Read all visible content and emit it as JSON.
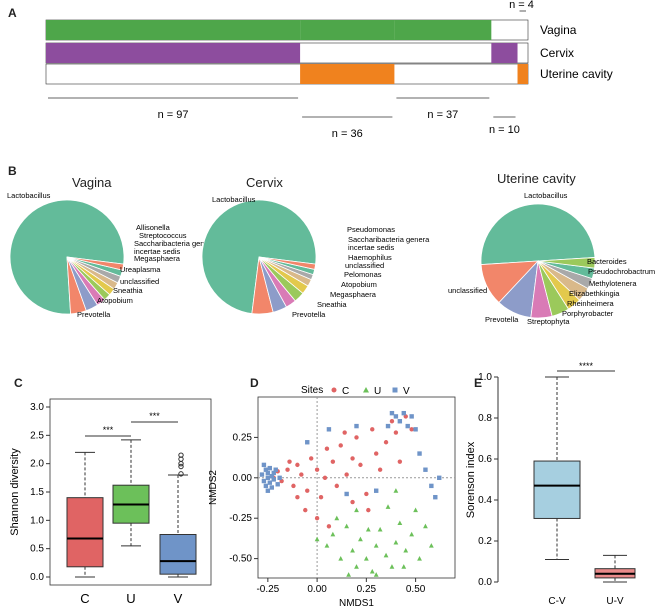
{
  "colors": {
    "vagina": "#4ea64a",
    "cervix": "#8d4d9e",
    "uterine": "#f0821e",
    "C": "#e06464",
    "U": "#6cc05a",
    "V": "#6f94c8",
    "E_CV": "#a6cfe0",
    "E_UV": "#e98a8a"
  },
  "panelA": {
    "letter": "A",
    "rows": [
      "Vagina",
      "Cervix",
      "Uterine cavity"
    ],
    "groups": [
      {
        "label": "n = 97",
        "pattern": [
          1,
          1,
          0
        ],
        "count": 97
      },
      {
        "label": "n = 36",
        "pattern": [
          1,
          0,
          1
        ],
        "count": 36
      },
      {
        "label": "n = 37",
        "pattern": [
          1,
          0,
          0
        ],
        "count": 37
      },
      {
        "label": "n = 10",
        "pattern": [
          0,
          1,
          0
        ],
        "count": 10
      },
      {
        "label": "n = 4",
        "pattern": [
          0,
          0,
          1
        ],
        "count": 4
      }
    ]
  },
  "panelB": {
    "letter": "B",
    "pies": [
      {
        "title": "Vagina",
        "slices": [
          {
            "name": "Lactobacillus",
            "value": 78,
            "color": "#63bb9a"
          },
          {
            "name": "Prevotella",
            "value": 4.5,
            "color": "#f2866a"
          },
          {
            "name": "Atopobium",
            "value": 3.5,
            "color": "#8d9cc9"
          },
          {
            "name": "Sneathia",
            "value": 2.5,
            "color": "#d97bb6"
          },
          {
            "name": "unclassified",
            "value": 2,
            "color": "#9bc95b"
          },
          {
            "name": "Ureaplasma",
            "value": 2,
            "color": "#e3c94c"
          },
          {
            "name": "Megasphaera",
            "value": 2,
            "color": "#d9b98a"
          },
          {
            "name": "Saccharibacteria genera incertae sedis",
            "value": 2,
            "color": "#a9a9a9"
          },
          {
            "name": "Streptococcus",
            "value": 1.8,
            "color": "#63bb9a"
          },
          {
            "name": "Allisonella",
            "value": 1.7,
            "color": "#f2866a"
          }
        ]
      },
      {
        "title": "Cervix",
        "slices": [
          {
            "name": "Lactobacillus",
            "value": 75,
            "color": "#63bb9a"
          },
          {
            "name": "Prevotella",
            "value": 6,
            "color": "#f2866a"
          },
          {
            "name": "Sneathia",
            "value": 4,
            "color": "#8d9cc9"
          },
          {
            "name": "Megasphaera",
            "value": 3,
            "color": "#d97bb6"
          },
          {
            "name": "Atopobium",
            "value": 3,
            "color": "#9bc95b"
          },
          {
            "name": "Pelomonas",
            "value": 2.5,
            "color": "#e3c94c"
          },
          {
            "name": "unclassified",
            "value": 2,
            "color": "#d9b98a"
          },
          {
            "name": "Haemophilus",
            "value": 1.5,
            "color": "#a9a9a9"
          },
          {
            "name": "Saccharibacteria genera incertae sedis",
            "value": 1.5,
            "color": "#63bb9a"
          },
          {
            "name": "Pseudomonas",
            "value": 1.5,
            "color": "#f2866a"
          }
        ]
      },
      {
        "title": "Uterine cavity",
        "slices": [
          {
            "name": "Lactobacillus",
            "value": 50,
            "color": "#63bb9a"
          },
          {
            "name": "unclassified",
            "value": 12,
            "color": "#f2866a"
          },
          {
            "name": "Prevotella",
            "value": 10,
            "color": "#8d9cc9"
          },
          {
            "name": "Streptophyta",
            "value": 6,
            "color": "#d97bb6"
          },
          {
            "name": "Porphyrobacter",
            "value": 5,
            "color": "#9bc95b"
          },
          {
            "name": "Rheinheimera",
            "value": 4,
            "color": "#e3c94c"
          },
          {
            "name": "Elizabethkingia",
            "value": 4,
            "color": "#d9b98a"
          },
          {
            "name": "Methylotenera",
            "value": 3,
            "color": "#a9a9a9"
          },
          {
            "name": "Pseudochrobactrum",
            "value": 3,
            "color": "#63bb9a"
          },
          {
            "name": "Bacteroides",
            "value": 3,
            "color": "#9bc95b"
          }
        ]
      }
    ]
  },
  "chart_data": [
    {
      "type": "box",
      "panel": "C",
      "ylabel": "Shannon diversity",
      "ylim": [
        0,
        3.0
      ],
      "yticks": [
        "0.0",
        "0.5",
        "1.0",
        "1.5",
        "2.0",
        "2.5",
        "3.0"
      ],
      "categories": [
        "C",
        "U",
        "V"
      ],
      "boxes": [
        {
          "name": "C",
          "min": 0.0,
          "q1": 0.18,
          "median": 0.68,
          "q3": 1.4,
          "max": 2.2,
          "outliers": []
        },
        {
          "name": "U",
          "min": 0.55,
          "q1": 0.95,
          "median": 1.28,
          "q3": 1.62,
          "max": 2.42,
          "outliers": []
        },
        {
          "name": "V",
          "min": 0.0,
          "q1": 0.05,
          "median": 0.28,
          "q3": 0.75,
          "max": 1.8,
          "outliers": [
            1.82,
            1.95,
            2.0,
            2.08,
            2.15
          ]
        }
      ],
      "sig": [
        {
          "pair": [
            "C",
            "U"
          ],
          "label": "***"
        },
        {
          "pair": [
            "U",
            "V"
          ],
          "label": "***"
        }
      ]
    },
    {
      "type": "scatter",
      "panel": "D",
      "xlabel": "NMDS1",
      "ylabel": "NMDS2",
      "legend_title": "Sites",
      "xlim": [
        -0.3,
        0.7
      ],
      "ylim": [
        -0.62,
        0.5
      ],
      "xticks": [
        "-0.25",
        "0.00",
        "0.25",
        "0.50"
      ],
      "yticks": [
        "-0.50",
        "-0.25",
        "0.00",
        "0.25"
      ],
      "series": [
        {
          "name": "C",
          "marker": "circle",
          "points": [
            [
              -0.22,
              0.0
            ],
            [
              -0.2,
              0.04
            ],
            [
              -0.18,
              -0.02
            ],
            [
              -0.15,
              0.05
            ],
            [
              -0.12,
              -0.05
            ],
            [
              -0.1,
              0.08
            ],
            [
              -0.08,
              0.02
            ],
            [
              -0.05,
              -0.08
            ],
            [
              -0.03,
              0.12
            ],
            [
              0.0,
              0.05
            ],
            [
              0.02,
              -0.12
            ],
            [
              0.05,
              0.18
            ],
            [
              0.08,
              0.1
            ],
            [
              0.1,
              -0.05
            ],
            [
              0.12,
              0.2
            ],
            [
              0.15,
              0.02
            ],
            [
              0.18,
              -0.15
            ],
            [
              0.2,
              0.25
            ],
            [
              0.22,
              0.08
            ],
            [
              0.25,
              -0.1
            ],
            [
              0.28,
              0.3
            ],
            [
              0.3,
              0.15
            ],
            [
              0.32,
              0.05
            ],
            [
              0.35,
              0.22
            ],
            [
              0.38,
              0.35
            ],
            [
              0.4,
              0.28
            ],
            [
              0.42,
              0.1
            ],
            [
              0.45,
              0.38
            ],
            [
              0.48,
              0.3
            ],
            [
              -0.06,
              -0.2
            ],
            [
              0.0,
              -0.25
            ],
            [
              0.06,
              -0.3
            ],
            [
              -0.1,
              -0.12
            ],
            [
              0.14,
              0.28
            ],
            [
              0.26,
              -0.2
            ],
            [
              -0.14,
              0.1
            ],
            [
              0.04,
              0.0
            ],
            [
              0.18,
              0.12
            ]
          ]
        },
        {
          "name": "U",
          "marker": "triangle",
          "points": [
            [
              0.05,
              -0.42
            ],
            [
              0.08,
              -0.35
            ],
            [
              0.12,
              -0.5
            ],
            [
              0.15,
              -0.3
            ],
            [
              0.18,
              -0.45
            ],
            [
              0.2,
              -0.55
            ],
            [
              0.22,
              -0.38
            ],
            [
              0.25,
              -0.5
            ],
            [
              0.28,
              -0.58
            ],
            [
              0.3,
              -0.42
            ],
            [
              0.32,
              -0.32
            ],
            [
              0.35,
              -0.48
            ],
            [
              0.38,
              -0.55
            ],
            [
              0.4,
              -0.4
            ],
            [
              0.42,
              -0.28
            ],
            [
              0.45,
              -0.45
            ],
            [
              0.48,
              -0.35
            ],
            [
              0.5,
              -0.2
            ],
            [
              0.52,
              -0.5
            ],
            [
              0.55,
              -0.3
            ],
            [
              0.1,
              -0.25
            ],
            [
              0.2,
              -0.2
            ],
            [
              0.3,
              -0.6
            ],
            [
              0.36,
              -0.18
            ],
            [
              0.44,
              -0.55
            ],
            [
              0.0,
              -0.38
            ],
            [
              0.16,
              -0.6
            ],
            [
              0.58,
              -0.42
            ],
            [
              0.26,
              -0.32
            ],
            [
              0.4,
              -0.08
            ]
          ]
        },
        {
          "name": "V",
          "marker": "square",
          "points": [
            [
              -0.28,
              0.02
            ],
            [
              -0.27,
              -0.02
            ],
            [
              -0.26,
              0.05
            ],
            [
              -0.26,
              -0.05
            ],
            [
              -0.25,
              0.0
            ],
            [
              -0.25,
              0.03
            ],
            [
              -0.24,
              -0.03
            ],
            [
              -0.24,
              0.06
            ],
            [
              -0.23,
              0.01
            ],
            [
              -0.23,
              -0.06
            ],
            [
              -0.22,
              0.03
            ],
            [
              -0.22,
              -0.01
            ],
            [
              -0.21,
              0.05
            ],
            [
              -0.2,
              -0.04
            ],
            [
              -0.19,
              0.0
            ],
            [
              -0.27,
              0.08
            ],
            [
              -0.25,
              -0.08
            ],
            [
              0.38,
              0.4
            ],
            [
              0.4,
              0.38
            ],
            [
              0.42,
              0.35
            ],
            [
              0.44,
              0.4
            ],
            [
              0.46,
              0.32
            ],
            [
              0.48,
              0.38
            ],
            [
              0.5,
              0.3
            ],
            [
              0.36,
              0.32
            ],
            [
              0.52,
              0.15
            ],
            [
              0.55,
              0.05
            ],
            [
              0.58,
              -0.05
            ],
            [
              0.6,
              -0.12
            ],
            [
              0.62,
              0.0
            ],
            [
              -0.05,
              0.22
            ],
            [
              0.06,
              0.3
            ],
            [
              0.2,
              0.32
            ],
            [
              0.3,
              -0.08
            ],
            [
              0.15,
              -0.1
            ]
          ]
        }
      ]
    },
    {
      "type": "box",
      "panel": "E",
      "ylabel": "Sorenson index",
      "ylim": [
        0,
        1.0
      ],
      "yticks": [
        "0.0",
        "0.2",
        "0.4",
        "0.6",
        "0.8",
        "1.0"
      ],
      "categories": [
        "C-V",
        "U-V"
      ],
      "boxes": [
        {
          "name": "C-V",
          "min": 0.11,
          "q1": 0.31,
          "median": 0.47,
          "q3": 0.59,
          "max": 1.0,
          "outliers": []
        },
        {
          "name": "U-V",
          "min": 0.0,
          "q1": 0.02,
          "median": 0.04,
          "q3": 0.065,
          "max": 0.13,
          "outliers": []
        }
      ],
      "sig": [
        {
          "pair": [
            "C-V",
            "U-V"
          ],
          "label": "****"
        }
      ]
    }
  ]
}
